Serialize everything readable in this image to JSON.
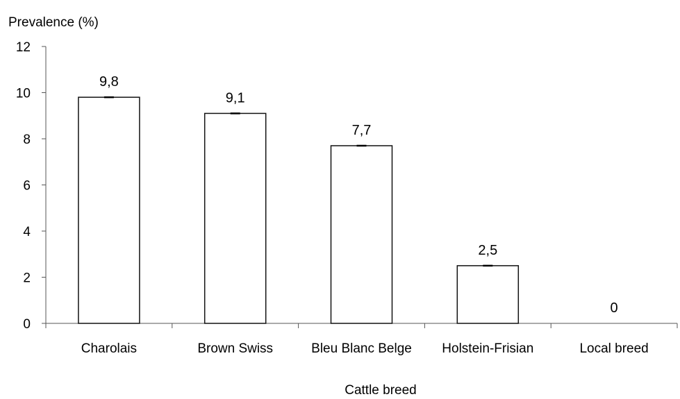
{
  "chart_data": {
    "type": "bar",
    "ylabel": "Prevalence (%)",
    "xlabel": "Cattle breed",
    "categories": [
      "Charolais",
      "Brown Swiss",
      "Bleu Blanc Belge",
      "Holstein-Frisian",
      "Local breed"
    ],
    "values": [
      9.8,
      9.1,
      7.7,
      2.5,
      0
    ],
    "value_labels": [
      "9,8",
      "9,1",
      "7,7",
      "2,5",
      "0"
    ],
    "ylim": [
      0,
      12
    ],
    "yticks": [
      "0",
      "2",
      "4",
      "6",
      "8",
      "10",
      "12"
    ],
    "grid": false,
    "legend": "none",
    "bar_fill": "#ffffff",
    "bar_stroke": "#111111"
  }
}
